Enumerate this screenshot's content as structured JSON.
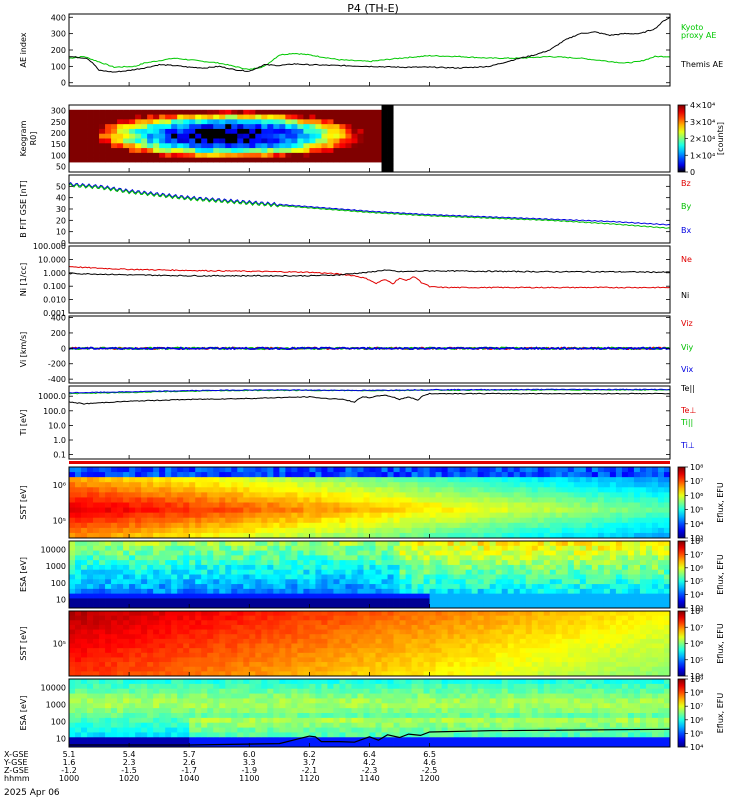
{
  "title": "P4 (TH-E)",
  "date_label": "2025 Apr 06",
  "colors": {
    "kyoto": "#00c800",
    "themis": "#000000",
    "bz": "#e00000",
    "by": "#00c000",
    "bx": "#0000e0",
    "ne": "#e00000",
    "ni": "#000000",
    "tell": "#000000",
    "teperp": "#e00000",
    "tipar": "#00c000",
    "tiperp": "#0000e0"
  },
  "chart_data": [
    {
      "id": "ae",
      "type": "line",
      "ylabel": "AE index",
      "ylim": [
        -20,
        420
      ],
      "yticks": [
        "400",
        "300",
        "200",
        "100",
        "0"
      ],
      "legend": [
        "Kyoto",
        "proxy AE",
        "Themis AE"
      ],
      "series": [
        {
          "name": "Kyoto proxy AE",
          "color": "#00c800",
          "x": [
            1000,
            1005,
            1015,
            1022,
            1025,
            1030,
            1035,
            1040,
            1045,
            1050,
            1055,
            1060,
            1065,
            1070,
            1075,
            1080,
            1090,
            1100,
            1110,
            1120,
            1130,
            1140,
            1150,
            1160,
            1170,
            1175,
            1180,
            1185,
            1190,
            1195,
            1200
          ],
          "y": [
            150,
            160,
            95,
            100,
            120,
            135,
            150,
            140,
            130,
            120,
            100,
            80,
            100,
            170,
            180,
            170,
            140,
            130,
            150,
            165,
            160,
            150,
            150,
            160,
            150,
            140,
            130,
            120,
            130,
            160,
            160
          ]
        },
        {
          "name": "Themis AE",
          "color": "#000000",
          "x": [
            1000,
            1003,
            1006,
            1008,
            1010,
            1015,
            1020,
            1025,
            1030,
            1035,
            1040,
            1045,
            1050,
            1055,
            1060,
            1065,
            1070,
            1075,
            1080,
            1090,
            1100,
            1110,
            1120,
            1130,
            1140,
            1150,
            1155,
            1160,
            1165,
            1170,
            1175,
            1180,
            1185,
            1190,
            1195,
            1198,
            1200
          ],
          "y": [
            160,
            155,
            150,
            120,
            75,
            65,
            75,
            90,
            110,
            105,
            95,
            90,
            100,
            80,
            70,
            110,
            105,
            115,
            110,
            105,
            100,
            95,
            95,
            90,
            100,
            150,
            170,
            200,
            260,
            300,
            310,
            290,
            300,
            300,
            330,
            380,
            400
          ]
        }
      ]
    },
    {
      "id": "keogram",
      "type": "heatmap",
      "ylabel": "Keogram",
      "y_unit": "R0]",
      "ylim": [
        20,
        310
      ],
      "yticks": [
        "300",
        "250",
        "200",
        "150",
        "100",
        "50"
      ],
      "colorbar_label": "[counts]",
      "colorbar_ticks": [
        "4×10⁴",
        "3×10⁴",
        "2×10⁴",
        "1×10⁴",
        "0"
      ],
      "x_range": [
        1000,
        1100
      ]
    },
    {
      "id": "bfield",
      "type": "line",
      "ylabel": "B FIT GSE [nT]",
      "ylim": [
        0,
        60
      ],
      "yticks": [
        "50",
        "40",
        "30",
        "20",
        "10",
        "0"
      ],
      "legend": [
        "Bz",
        "By",
        "Bx"
      ],
      "series": [
        {
          "name": "Bx",
          "color": "#0000e0",
          "x": [
            1000,
            1010,
            1020,
            1030,
            1040,
            1060,
            1080,
            1100,
            1120,
            1140,
            1160,
            1180,
            1200
          ],
          "y": [
            52,
            50,
            46,
            43,
            40,
            36,
            32,
            28,
            25,
            23,
            21,
            19,
            16
          ]
        },
        {
          "name": "By",
          "color": "#00c000",
          "x": [
            1000,
            1010,
            1020,
            1030,
            1040,
            1060,
            1080,
            1100,
            1120,
            1140,
            1160,
            1180,
            1200
          ],
          "y": [
            51,
            49,
            45,
            42,
            39,
            35,
            31,
            27,
            24,
            22,
            20,
            17,
            13
          ]
        }
      ]
    },
    {
      "id": "density",
      "type": "line",
      "ylabel": "Ni [1/cc]",
      "ylim": [
        0.001,
        100
      ],
      "scale": "log",
      "yticks": [
        "100.000",
        "10.000",
        "1.000",
        "0.100",
        "0.010",
        "0.001"
      ],
      "legend": [
        "Ne",
        "Ni"
      ],
      "series": [
        {
          "name": "Ne",
          "color": "#e00000",
          "x": [
            1000,
            1005,
            1010,
            1020,
            1040,
            1060,
            1080,
            1090,
            1095,
            1100,
            1102,
            1105,
            1108,
            1110,
            1112,
            1115,
            1117,
            1120,
            1125,
            1140,
            1160,
            1180,
            1200
          ],
          "y": [
            3.0,
            2.5,
            2.2,
            1.8,
            1.5,
            1.3,
            1.1,
            0.8,
            0.6,
            0.3,
            0.15,
            0.3,
            0.15,
            0.4,
            0.25,
            0.5,
            0.2,
            0.09,
            0.08,
            0.08,
            0.08,
            0.08,
            0.08
          ]
        },
        {
          "name": "Ni",
          "color": "#000000",
          "x": [
            1000,
            1010,
            1020,
            1040,
            1060,
            1080,
            1090,
            1100,
            1105,
            1110,
            1120,
            1140,
            1160,
            1180,
            1200
          ],
          "y": [
            0.9,
            0.8,
            0.7,
            0.6,
            0.6,
            0.6,
            0.7,
            1.1,
            1.6,
            1.2,
            1.4,
            1.3,
            1.2,
            1.2,
            1.1
          ]
        }
      ]
    },
    {
      "id": "velocity",
      "type": "line",
      "ylabel": "Vi [km/s]",
      "ylim": [
        -450,
        420
      ],
      "yticks": [
        "400",
        "200",
        "0",
        "-200",
        "-400"
      ],
      "legend": [
        "Viz",
        "Viy",
        "Vix"
      ],
      "series": [
        {
          "name": "Viz",
          "color": "#e00000",
          "x": [
            1000,
            1200
          ],
          "y": [
            0,
            0
          ]
        },
        {
          "name": "Viy",
          "color": "#00c000",
          "x": [
            1000,
            1200
          ],
          "y": [
            0,
            0
          ]
        },
        {
          "name": "Vix",
          "color": "#0000e0",
          "x": [
            1000,
            1200
          ],
          "y": [
            0,
            0
          ]
        }
      ]
    },
    {
      "id": "temperature",
      "type": "line",
      "ylabel": "Ti [eV]",
      "ylim": [
        0.05,
        5000
      ],
      "scale": "log",
      "yticks": [
        "1000.0",
        "100.0",
        "10.0",
        "1.0",
        "0.1"
      ],
      "legend": [
        "Te||",
        "Te⊥",
        "Ti||",
        "Ti⊥"
      ],
      "series": [
        {
          "name": "Ti||",
          "color": "#00c000",
          "x": [
            1000,
            1020,
            1040,
            1060,
            1080,
            1100,
            1120,
            1140,
            1160,
            1180,
            1200
          ],
          "y": [
            1500,
            1800,
            2200,
            2500,
            2500,
            2400,
            2600,
            2600,
            2700,
            2700,
            2700
          ]
        },
        {
          "name": "Ti⊥",
          "color": "#0000e0",
          "x": [
            1000,
            1020,
            1040,
            1060,
            1080,
            1100,
            1120,
            1140,
            1160,
            1180,
            1200
          ],
          "y": [
            1700,
            2000,
            2400,
            2700,
            2600,
            2500,
            2800,
            2800,
            2900,
            2900,
            2900
          ]
        },
        {
          "name": "Te||",
          "color": "#000000",
          "x": [
            1000,
            1005,
            1020,
            1040,
            1060,
            1070,
            1080,
            1085,
            1090,
            1095,
            1098,
            1100,
            1105,
            1110,
            1113,
            1116,
            1118,
            1120
          ],
          "y": [
            400,
            300,
            450,
            600,
            700,
            800,
            900,
            700,
            650,
            400,
            900,
            800,
            1200,
            600,
            900,
            500,
            1100,
            1500
          ]
        }
      ]
    },
    {
      "id": "sst_ions",
      "type": "heatmap",
      "ylabel": "SST [eV]",
      "yticks": [
        "10⁶",
        "10⁵"
      ],
      "colorbar_label": "Eflux, EFU",
      "colorbar_ticks": [
        "10⁸",
        "10⁷",
        "10⁶",
        "10⁵",
        "10⁴",
        "10³"
      ]
    },
    {
      "id": "esa_ions",
      "type": "heatmap",
      "ylabel": "ESA [eV]",
      "yticks": [
        "10000",
        "1000",
        "100",
        "10"
      ],
      "colorbar_label": "Eflux, EFU",
      "colorbar_ticks": [
        "10⁸",
        "10⁷",
        "10⁶",
        "10⁵",
        "10⁴",
        "10³"
      ]
    },
    {
      "id": "sst_electrons",
      "type": "heatmap",
      "ylabel": "SST [eV]",
      "yticks": [
        "10⁵"
      ],
      "colorbar_label": "Eflux, EFU",
      "colorbar_ticks": [
        "10⁸",
        "10⁷",
        "10⁶",
        "10⁵",
        "10⁴"
      ]
    },
    {
      "id": "esa_electrons",
      "type": "heatmap",
      "ylabel": "ESA [eV]",
      "yticks": [
        "10000",
        "1000",
        "100",
        "10"
      ],
      "colorbar_label": "Eflux, EFU",
      "colorbar_ticks": [
        "10⁹",
        "10⁸",
        "10⁷",
        "10⁶",
        "10⁵",
        "10⁴"
      ]
    }
  ],
  "x_axis": {
    "row_labels": [
      "X-GSE",
      "Y-GSE",
      "Z-GSE",
      "hhmm"
    ],
    "columns": [
      {
        "x": 1000,
        "vals": [
          "5.1",
          "1.6",
          "-1.2",
          "1000"
        ]
      },
      {
        "x": 1020,
        "vals": [
          "5.4",
          "2.3",
          "-1.5",
          "1020"
        ]
      },
      {
        "x": 1040,
        "vals": [
          "5.7",
          "2.6",
          "-1.7",
          "1040"
        ]
      },
      {
        "x": 1060,
        "vals": [
          "6.0",
          "3.3",
          "-1.9",
          "1100"
        ]
      },
      {
        "x": 1080,
        "vals": [
          "6.2",
          "3.7",
          "-2.1",
          "1120"
        ]
      },
      {
        "x": 1100,
        "vals": [
          "6.4",
          "4.2",
          "-2.3",
          "1140"
        ]
      },
      {
        "x": 1120,
        "vals": [
          "6.5",
          "4.6",
          "-2.5",
          "1200"
        ]
      }
    ]
  }
}
